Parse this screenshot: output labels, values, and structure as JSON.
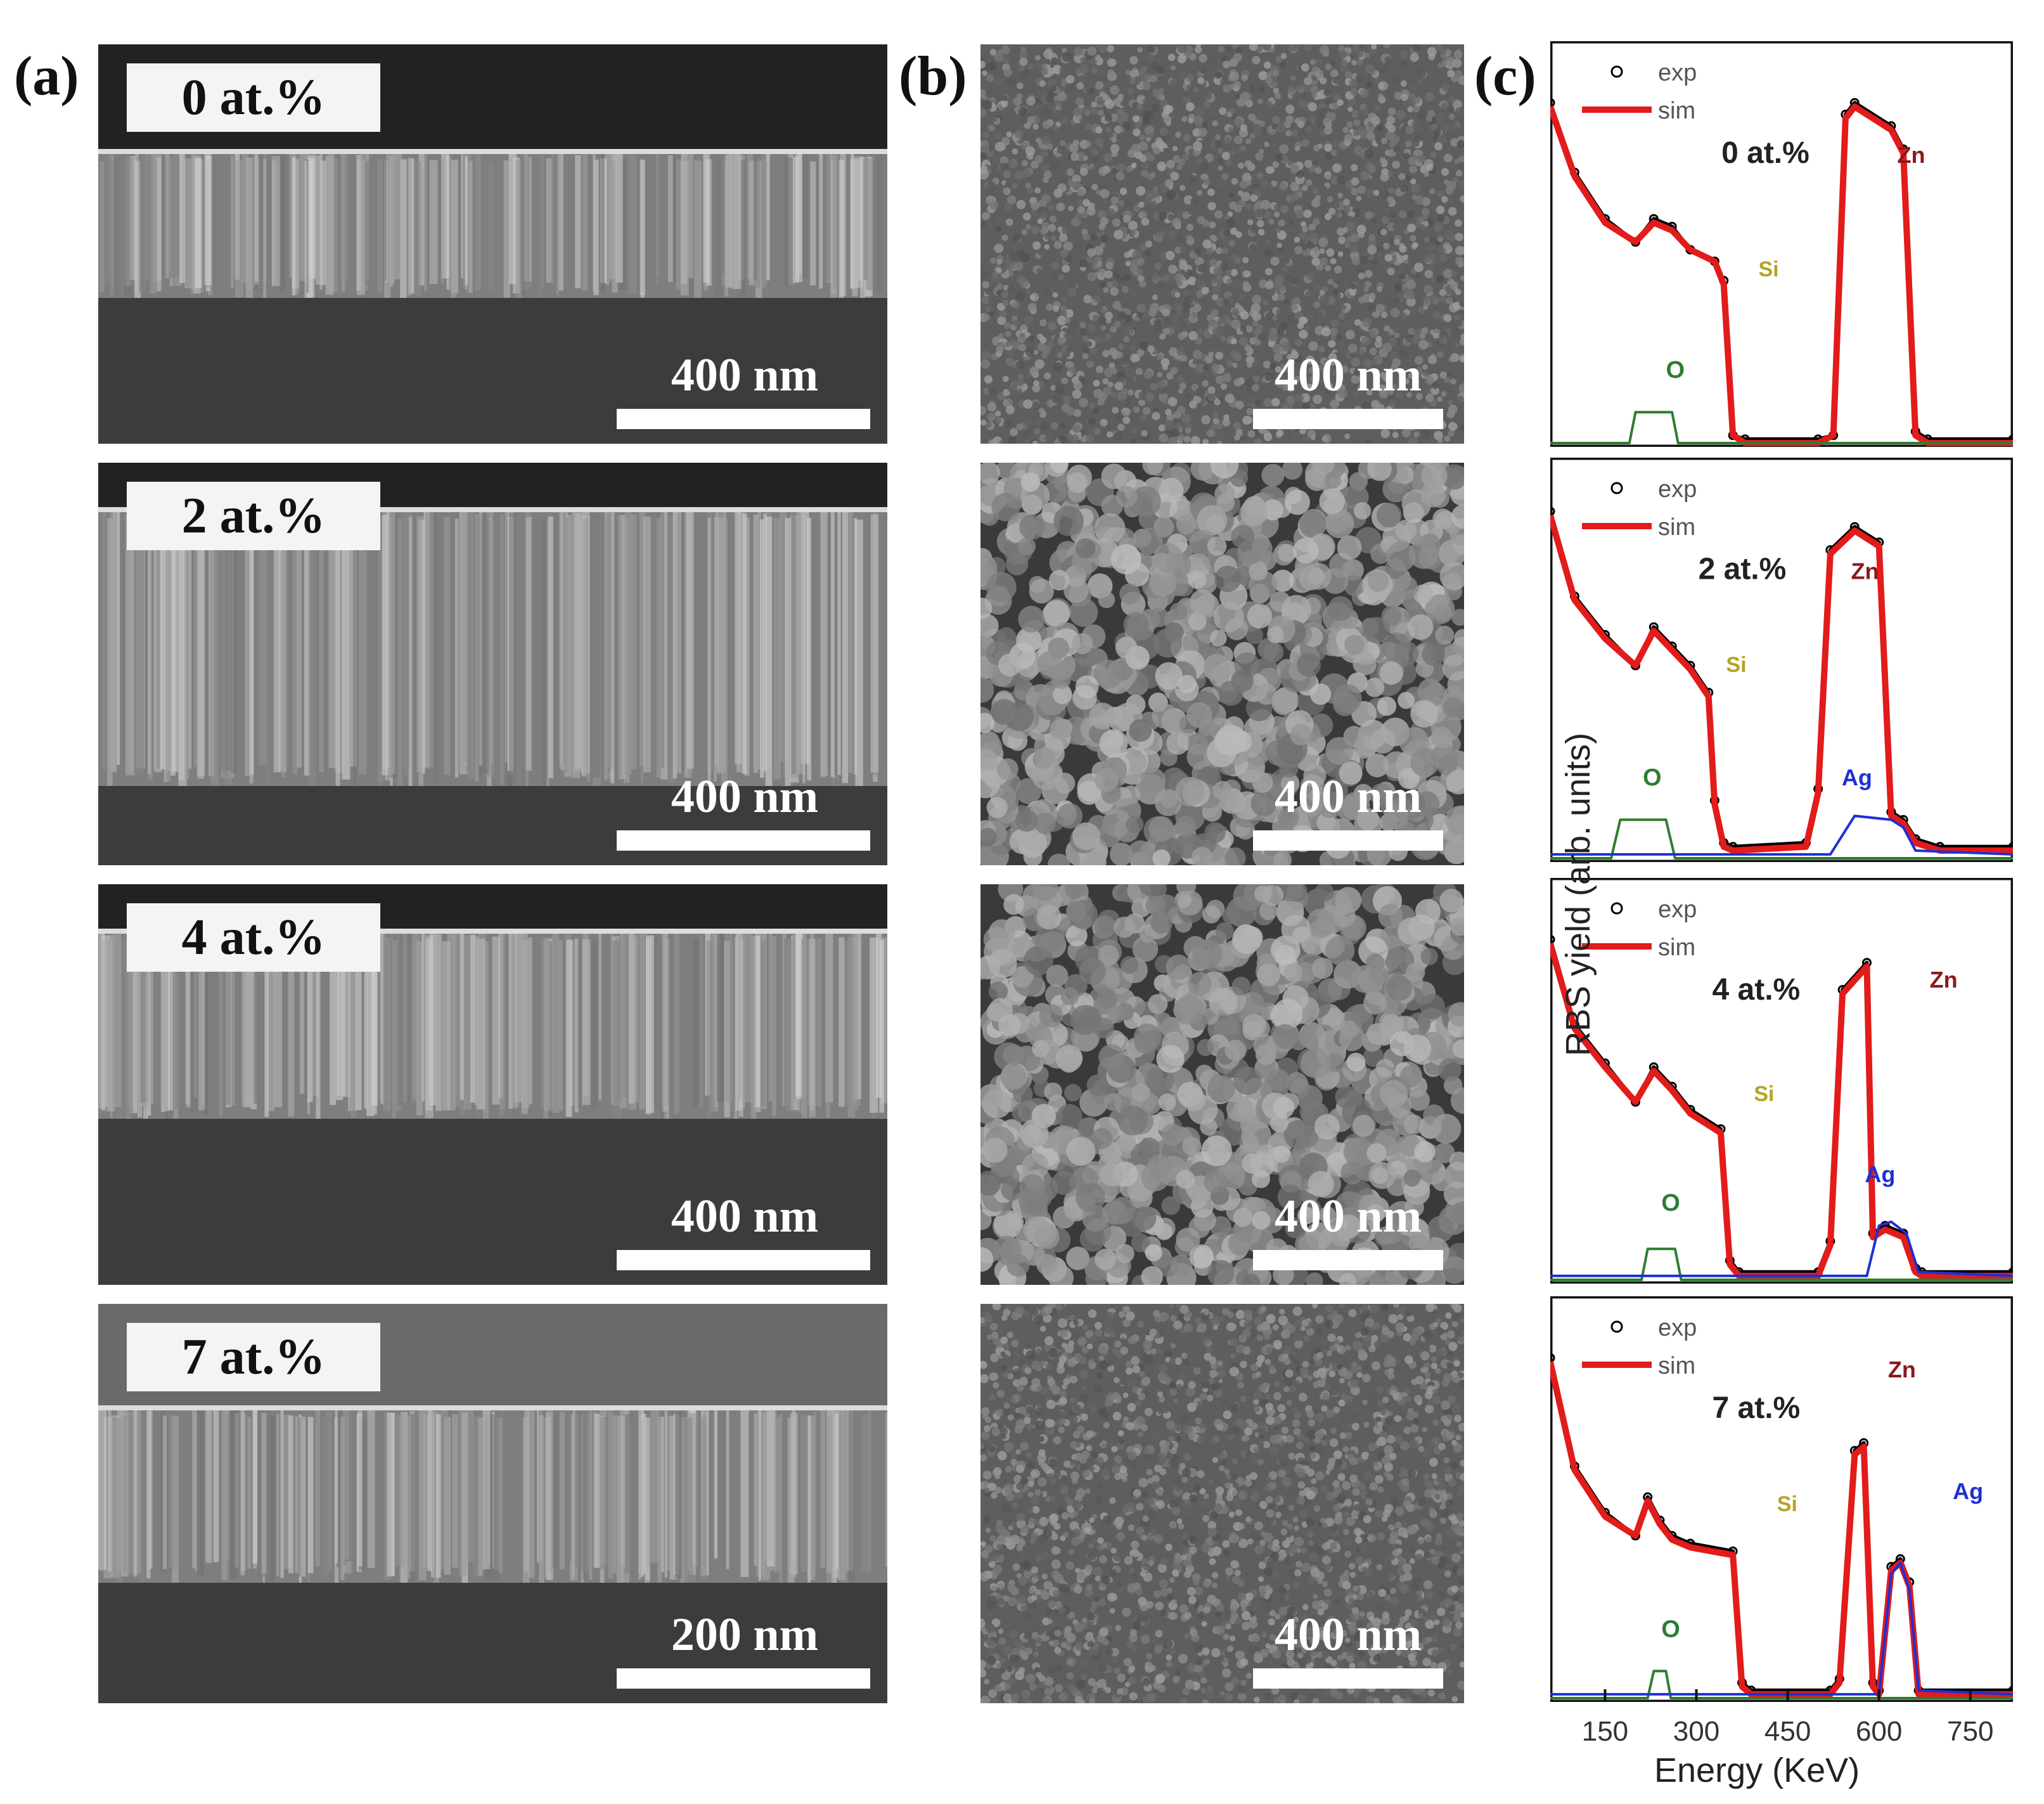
{
  "panel_labels": {
    "a": "(a)",
    "b": "(b)",
    "c": "(c)"
  },
  "samples": [
    {
      "label": "0 at.%",
      "cross_section_scale": "400 nm",
      "surface_scale": "400 nm"
    },
    {
      "label": "2 at.%",
      "cross_section_scale": "400 nm",
      "surface_scale": "400 nm"
    },
    {
      "label": "4 at.%",
      "cross_section_scale": "400 nm",
      "surface_scale": "400 nm"
    },
    {
      "label": "7 at.%",
      "cross_section_scale": "200 nm",
      "surface_scale": "400 nm"
    }
  ],
  "colors": {
    "exp": "#000000",
    "sim": "#e21b1b",
    "o": "#2e7d32",
    "si": "#8b7d1a",
    "zn": "#8b1a1a",
    "ag": "#1f2fd6",
    "si_label": "#b5a326"
  },
  "chart_data": [
    {
      "type": "line",
      "sample": "0 at.%",
      "legend": [
        "exp",
        "sim"
      ],
      "xlabel": "Energy (KeV)",
      "ylabel": "RBS yield (arb. units)",
      "x_ticks": [
        150,
        300,
        450,
        600,
        750
      ],
      "xlim": [
        60,
        820
      ],
      "ylim": [
        0,
        1
      ],
      "element_labels": {
        "Zn": "Zn",
        "Si": "Si",
        "O": "O"
      },
      "series": [
        {
          "name": "exp",
          "x": [
            60,
            100,
            150,
            200,
            230,
            260,
            290,
            330,
            345,
            360,
            380,
            500,
            525,
            545,
            560,
            620,
            640,
            660,
            680,
            820
          ],
          "y": [
            0.88,
            0.7,
            0.58,
            0.52,
            0.58,
            0.56,
            0.5,
            0.47,
            0.42,
            0.02,
            0.01,
            0.01,
            0.02,
            0.85,
            0.88,
            0.82,
            0.76,
            0.03,
            0.01,
            0.01
          ]
        },
        {
          "name": "sim",
          "x": [
            60,
            100,
            150,
            200,
            230,
            260,
            290,
            330,
            345,
            360,
            380,
            500,
            525,
            545,
            560,
            620,
            640,
            660,
            680,
            820
          ],
          "y": [
            0.87,
            0.69,
            0.57,
            0.52,
            0.57,
            0.55,
            0.5,
            0.47,
            0.41,
            0.02,
            0.0,
            0.0,
            0.02,
            0.84,
            0.87,
            0.81,
            0.75,
            0.02,
            0.0,
            0.0
          ]
        },
        {
          "name": "O",
          "x": [
            60,
            190,
            200,
            260,
            270,
            820
          ],
          "y": [
            0,
            0,
            0.08,
            0.08,
            0,
            0
          ]
        }
      ]
    },
    {
      "type": "line",
      "sample": "2 at.%",
      "legend": [
        "exp",
        "sim"
      ],
      "xlabel": "Energy (KeV)",
      "ylabel": "RBS yield (arb. units)",
      "x_ticks": [
        150,
        300,
        450,
        600,
        750
      ],
      "xlim": [
        60,
        820
      ],
      "ylim": [
        0,
        1
      ],
      "element_labels": {
        "Zn": "Zn",
        "Si": "Si",
        "O": "O",
        "Ag": "Ag"
      },
      "series": [
        {
          "name": "exp",
          "x": [
            60,
            100,
            150,
            200,
            230,
            260,
            290,
            320,
            330,
            345,
            360,
            480,
            500,
            520,
            560,
            600,
            620,
            640,
            660,
            700,
            820
          ],
          "y": [
            0.9,
            0.68,
            0.58,
            0.5,
            0.6,
            0.55,
            0.5,
            0.43,
            0.15,
            0.04,
            0.03,
            0.04,
            0.18,
            0.8,
            0.86,
            0.82,
            0.12,
            0.1,
            0.05,
            0.03,
            0.03
          ]
        },
        {
          "name": "sim",
          "x": [
            60,
            100,
            150,
            200,
            230,
            260,
            290,
            320,
            330,
            345,
            360,
            480,
            500,
            520,
            560,
            600,
            620,
            640,
            660,
            700,
            820
          ],
          "y": [
            0.89,
            0.67,
            0.57,
            0.5,
            0.59,
            0.54,
            0.49,
            0.42,
            0.14,
            0.03,
            0.02,
            0.03,
            0.17,
            0.79,
            0.85,
            0.81,
            0.11,
            0.09,
            0.04,
            0.02,
            0.02
          ]
        },
        {
          "name": "O",
          "x": [
            60,
            160,
            175,
            250,
            265,
            820
          ],
          "y": [
            0,
            0,
            0.1,
            0.1,
            0,
            0
          ]
        },
        {
          "name": "Ag",
          "x": [
            60,
            520,
            560,
            620,
            640,
            660,
            820
          ],
          "y": [
            0.01,
            0.01,
            0.11,
            0.1,
            0.08,
            0.02,
            0.01
          ]
        }
      ]
    },
    {
      "type": "line",
      "sample": "4 at.%",
      "legend": [
        "exp",
        "sim"
      ],
      "xlabel": "Energy (KeV)",
      "ylabel": "RBS yield (arb. units)",
      "x_ticks": [
        150,
        300,
        450,
        600,
        750
      ],
      "xlim": [
        60,
        820
      ],
      "ylim": [
        0,
        1
      ],
      "element_labels": {
        "Zn": "Zn",
        "Si": "Si",
        "O": "O",
        "Ag": "Ag"
      },
      "series": [
        {
          "name": "exp",
          "x": [
            60,
            100,
            150,
            200,
            230,
            260,
            290,
            340,
            355,
            370,
            500,
            520,
            540,
            580,
            590,
            610,
            640,
            660,
            670,
            820
          ],
          "y": [
            0.88,
            0.66,
            0.56,
            0.46,
            0.55,
            0.5,
            0.44,
            0.39,
            0.05,
            0.02,
            0.02,
            0.1,
            0.75,
            0.82,
            0.12,
            0.14,
            0.12,
            0.03,
            0.02,
            0.02
          ]
        },
        {
          "name": "sim",
          "x": [
            60,
            100,
            150,
            200,
            230,
            260,
            290,
            340,
            355,
            370,
            500,
            520,
            540,
            580,
            590,
            610,
            640,
            660,
            670,
            820
          ],
          "y": [
            0.87,
            0.65,
            0.55,
            0.46,
            0.54,
            0.49,
            0.43,
            0.38,
            0.04,
            0.01,
            0.01,
            0.09,
            0.74,
            0.81,
            0.11,
            0.13,
            0.11,
            0.02,
            0.01,
            0.01
          ]
        },
        {
          "name": "O",
          "x": [
            60,
            210,
            220,
            265,
            275,
            820
          ],
          "y": [
            0,
            0,
            0.08,
            0.08,
            0,
            0
          ]
        },
        {
          "name": "Ag",
          "x": [
            60,
            580,
            600,
            620,
            645,
            665,
            820
          ],
          "y": [
            0.01,
            0.01,
            0.14,
            0.15,
            0.12,
            0.02,
            0.01
          ]
        }
      ]
    },
    {
      "type": "line",
      "sample": "7 at.%",
      "legend": [
        "exp",
        "sim"
      ],
      "xlabel": "Energy (KeV)",
      "ylabel": "RBS yield (arb. units)",
      "x_ticks": [
        150,
        300,
        450,
        600,
        750
      ],
      "xlim": [
        60,
        820
      ],
      "ylim": [
        0,
        1
      ],
      "element_labels": {
        "Zn": "Zn",
        "Si": "Si",
        "O": "O",
        "Ag": "Ag"
      },
      "series": [
        {
          "name": "exp",
          "x": [
            60,
            100,
            150,
            200,
            220,
            240,
            260,
            290,
            360,
            375,
            390,
            520,
            535,
            560,
            575,
            590,
            600,
            620,
            635,
            650,
            665,
            820
          ],
          "y": [
            0.88,
            0.6,
            0.48,
            0.42,
            0.52,
            0.46,
            0.42,
            0.4,
            0.38,
            0.04,
            0.02,
            0.02,
            0.05,
            0.64,
            0.66,
            0.04,
            0.02,
            0.34,
            0.36,
            0.3,
            0.02,
            0.02
          ]
        },
        {
          "name": "sim",
          "x": [
            60,
            100,
            150,
            200,
            220,
            240,
            260,
            290,
            360,
            375,
            390,
            520,
            535,
            560,
            575,
            590,
            600,
            620,
            635,
            650,
            665,
            820
          ],
          "y": [
            0.87,
            0.59,
            0.47,
            0.42,
            0.51,
            0.45,
            0.41,
            0.39,
            0.37,
            0.03,
            0.01,
            0.01,
            0.04,
            0.63,
            0.65,
            0.03,
            0.01,
            0.33,
            0.35,
            0.29,
            0.01,
            0.01
          ]
        },
        {
          "name": "O",
          "x": [
            60,
            220,
            230,
            250,
            258,
            820
          ],
          "y": [
            0,
            0,
            0.07,
            0.07,
            0,
            0
          ]
        },
        {
          "name": "Ag",
          "x": [
            60,
            600,
            620,
            635,
            650,
            665,
            820
          ],
          "y": [
            0.01,
            0.01,
            0.32,
            0.35,
            0.28,
            0.02,
            0.01
          ]
        }
      ]
    }
  ]
}
